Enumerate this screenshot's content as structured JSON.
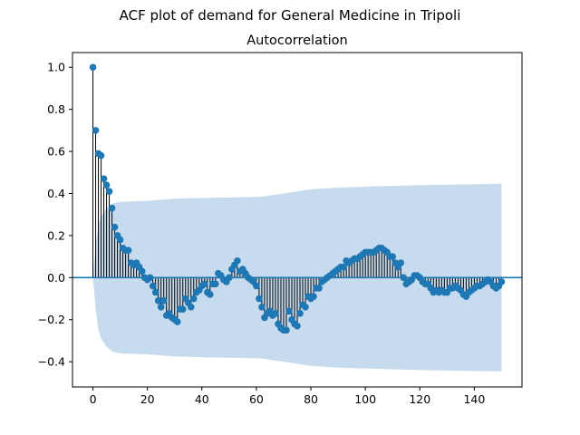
{
  "chart_data": {
    "type": "stem",
    "suptitle": "ACF plot of demand for General Medicine in Tripoli",
    "title": "Autocorrelation",
    "xlim": [
      -7.5,
      157.5
    ],
    "ylim": [
      -0.52,
      1.07
    ],
    "xticks": [
      {
        "v": 0,
        "label": "0"
      },
      {
        "v": 20,
        "label": "20"
      },
      {
        "v": 40,
        "label": "40"
      },
      {
        "v": 60,
        "label": "60"
      },
      {
        "v": 80,
        "label": "80"
      },
      {
        "v": 100,
        "label": "100"
      },
      {
        "v": 120,
        "label": "120"
      },
      {
        "v": 140,
        "label": "140"
      }
    ],
    "yticks": [
      {
        "v": 1.0,
        "label": "1.0"
      },
      {
        "v": 0.8,
        "label": "0.8"
      },
      {
        "v": 0.6,
        "label": "0.6"
      },
      {
        "v": 0.4,
        "label": "0.4"
      },
      {
        "v": 0.2,
        "label": "0.2"
      },
      {
        "v": 0.0,
        "label": "0.0"
      },
      {
        "v": -0.2,
        "label": "−0.2"
      },
      {
        "v": -0.4,
        "label": "−0.4"
      }
    ],
    "colors": {
      "marker": "#1f77b4",
      "stem": "#000000",
      "band": "#c6dbed",
      "baseline": "#1f77b4"
    },
    "confidence_band_upper": [
      [
        0,
        0
      ],
      [
        1,
        0.15
      ],
      [
        2,
        0.25
      ],
      [
        3,
        0.29
      ],
      [
        4,
        0.31
      ],
      [
        5,
        0.33
      ],
      [
        6,
        0.34
      ],
      [
        7,
        0.35
      ],
      [
        8,
        0.355
      ],
      [
        10,
        0.36
      ],
      [
        20,
        0.365
      ],
      [
        30,
        0.375
      ],
      [
        45,
        0.38
      ],
      [
        55,
        0.382
      ],
      [
        62,
        0.385
      ],
      [
        70,
        0.4
      ],
      [
        80,
        0.42
      ],
      [
        90,
        0.428
      ],
      [
        100,
        0.432
      ],
      [
        110,
        0.436
      ],
      [
        120,
        0.44
      ],
      [
        135,
        0.443
      ],
      [
        150,
        0.446
      ]
    ],
    "acf": [
      [
        0,
        1.0
      ],
      [
        1,
        0.7
      ],
      [
        2,
        0.59
      ],
      [
        3,
        0.58
      ],
      [
        4,
        0.47
      ],
      [
        5,
        0.44
      ],
      [
        6,
        0.41
      ],
      [
        7,
        0.33
      ],
      [
        8,
        0.24
      ],
      [
        9,
        0.2
      ],
      [
        10,
        0.18
      ],
      [
        11,
        0.14
      ],
      [
        12,
        0.13
      ],
      [
        13,
        0.13
      ],
      [
        14,
        0.07
      ],
      [
        15,
        0.06
      ],
      [
        16,
        0.07
      ],
      [
        17,
        0.05
      ],
      [
        18,
        0.03
      ],
      [
        19,
        0.0
      ],
      [
        20,
        -0.01
      ],
      [
        21,
        0.0
      ],
      [
        22,
        -0.04
      ],
      [
        23,
        -0.07
      ],
      [
        24,
        -0.11
      ],
      [
        25,
        -0.14
      ],
      [
        26,
        -0.11
      ],
      [
        27,
        -0.18
      ],
      [
        28,
        -0.17
      ],
      [
        29,
        -0.19
      ],
      [
        30,
        -0.2
      ],
      [
        31,
        -0.21
      ],
      [
        32,
        -0.15
      ],
      [
        33,
        -0.15
      ],
      [
        34,
        -0.1
      ],
      [
        35,
        -0.12
      ],
      [
        36,
        -0.14
      ],
      [
        37,
        -0.1
      ],
      [
        38,
        -0.07
      ],
      [
        39,
        -0.06
      ],
      [
        40,
        -0.04
      ],
      [
        41,
        -0.03
      ],
      [
        42,
        -0.07
      ],
      [
        43,
        -0.08
      ],
      [
        44,
        -0.03
      ],
      [
        45,
        -0.03
      ],
      [
        46,
        0.02
      ],
      [
        47,
        0.01
      ],
      [
        48,
        -0.01
      ],
      [
        49,
        -0.02
      ],
      [
        50,
        0.0
      ],
      [
        51,
        0.04
      ],
      [
        52,
        0.06
      ],
      [
        53,
        0.08
      ],
      [
        54,
        0.03
      ],
      [
        55,
        0.04
      ],
      [
        56,
        0.02
      ],
      [
        57,
        0.0
      ],
      [
        58,
        -0.01
      ],
      [
        59,
        -0.02
      ],
      [
        60,
        -0.04
      ],
      [
        61,
        -0.1
      ],
      [
        62,
        -0.14
      ],
      [
        63,
        -0.19
      ],
      [
        64,
        -0.17
      ],
      [
        65,
        -0.16
      ],
      [
        66,
        -0.18
      ],
      [
        67,
        -0.17
      ],
      [
        68,
        -0.22
      ],
      [
        69,
        -0.24
      ],
      [
        70,
        -0.25
      ],
      [
        71,
        -0.25
      ],
      [
        72,
        -0.16
      ],
      [
        73,
        -0.2
      ],
      [
        74,
        -0.22
      ],
      [
        75,
        -0.23
      ],
      [
        76,
        -0.17
      ],
      [
        77,
        -0.13
      ],
      [
        78,
        -0.14
      ],
      [
        79,
        -0.09
      ],
      [
        80,
        -0.1
      ],
      [
        81,
        -0.09
      ],
      [
        82,
        -0.05
      ],
      [
        83,
        -0.05
      ],
      [
        84,
        -0.02
      ],
      [
        85,
        -0.01
      ],
      [
        86,
        0.0
      ],
      [
        87,
        0.01
      ],
      [
        88,
        0.02
      ],
      [
        89,
        0.03
      ],
      [
        90,
        0.04
      ],
      [
        91,
        0.05
      ],
      [
        92,
        0.05
      ],
      [
        93,
        0.08
      ],
      [
        94,
        0.07
      ],
      [
        95,
        0.08
      ],
      [
        96,
        0.09
      ],
      [
        97,
        0.09
      ],
      [
        98,
        0.1
      ],
      [
        99,
        0.11
      ],
      [
        100,
        0.12
      ],
      [
        101,
        0.12
      ],
      [
        102,
        0.12
      ],
      [
        103,
        0.12
      ],
      [
        104,
        0.13
      ],
      [
        105,
        0.14
      ],
      [
        106,
        0.14
      ],
      [
        107,
        0.13
      ],
      [
        108,
        0.12
      ],
      [
        109,
        0.1
      ],
      [
        110,
        0.1
      ],
      [
        111,
        0.07
      ],
      [
        112,
        0.05
      ],
      [
        113,
        0.07
      ],
      [
        114,
        0.0
      ],
      [
        115,
        -0.03
      ],
      [
        116,
        -0.02
      ],
      [
        117,
        -0.01
      ],
      [
        118,
        0.01
      ],
      [
        119,
        0.01
      ],
      [
        120,
        0.0
      ],
      [
        121,
        -0.02
      ],
      [
        122,
        -0.03
      ],
      [
        123,
        -0.03
      ],
      [
        124,
        -0.05
      ],
      [
        125,
        -0.07
      ],
      [
        126,
        -0.06
      ],
      [
        127,
        -0.07
      ],
      [
        128,
        -0.06
      ],
      [
        129,
        -0.07
      ],
      [
        130,
        -0.07
      ],
      [
        131,
        -0.05
      ],
      [
        132,
        -0.05
      ],
      [
        133,
        -0.04
      ],
      [
        134,
        -0.05
      ],
      [
        135,
        -0.06
      ],
      [
        136,
        -0.08
      ],
      [
        137,
        -0.09
      ],
      [
        138,
        -0.07
      ],
      [
        139,
        -0.06
      ],
      [
        140,
        -0.05
      ],
      [
        141,
        -0.04
      ],
      [
        142,
        -0.04
      ],
      [
        143,
        -0.03
      ],
      [
        144,
        -0.02
      ],
      [
        145,
        -0.01
      ],
      [
        146,
        -0.02
      ],
      [
        147,
        -0.04
      ],
      [
        148,
        -0.05
      ],
      [
        149,
        -0.04
      ],
      [
        150,
        -0.02
      ]
    ]
  }
}
